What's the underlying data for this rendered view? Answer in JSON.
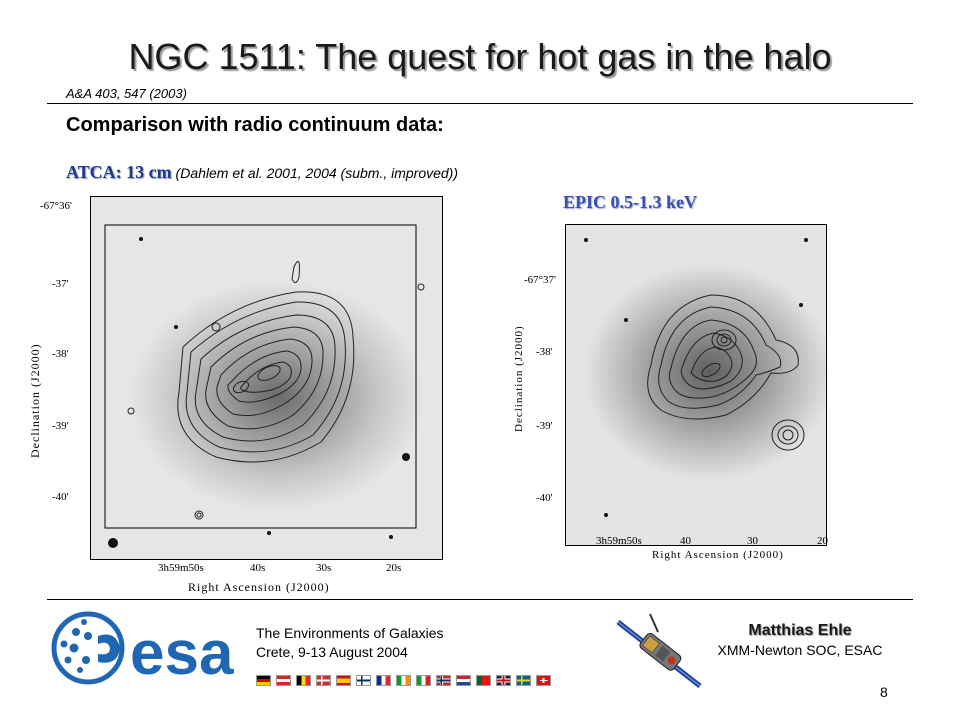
{
  "slide": {
    "title": "NGC 1511: The quest for hot gas in the halo",
    "reference": "A&A 403, 547 (2003)",
    "subtitle": "Comparison with radio continuum data",
    "atca_label": "ATCA: 13 cm",
    "atca_note": "(Dahlem et al. 2001, 2004 (subm., improved))",
    "epic_label": "EPIC 0.5-1.3 keV",
    "page_number": "8"
  },
  "left_panel": {
    "y_ticks": [
      "-67°36'",
      "-37'",
      "-38'",
      "-39'",
      "-40'"
    ],
    "x_ticks": [
      "3h59m50s",
      "40s",
      "30s",
      "20s"
    ],
    "y_label": "Declination (J2000)",
    "x_label": "Right Ascension (J2000)"
  },
  "right_panel": {
    "y_ticks": [
      "-67°37'",
      "-38'",
      "-39'",
      "-40'"
    ],
    "x_ticks": [
      "3h59m50s",
      "40",
      "30",
      "20"
    ],
    "y_label": "Declination (J2000)",
    "x_label": "Right Ascension (J2000)"
  },
  "footer": {
    "conference_line1": "The Environments of Galaxies",
    "conference_line2": "Crete, 9-13 August 2004",
    "author_name": "Matthias Ehle",
    "author_affiliation": "XMM-Newton SOC, ESAC",
    "logo_text": "esa"
  },
  "colors": {
    "esa_blue": "#1f66b3",
    "label_blue": "#1f3b8c"
  },
  "flags": [
    "germany",
    "austria",
    "belgium",
    "denmark",
    "spain",
    "finland",
    "france",
    "ireland",
    "italy",
    "norway",
    "netherlands",
    "portugal",
    "united-kingdom",
    "sweden",
    "switzerland"
  ]
}
